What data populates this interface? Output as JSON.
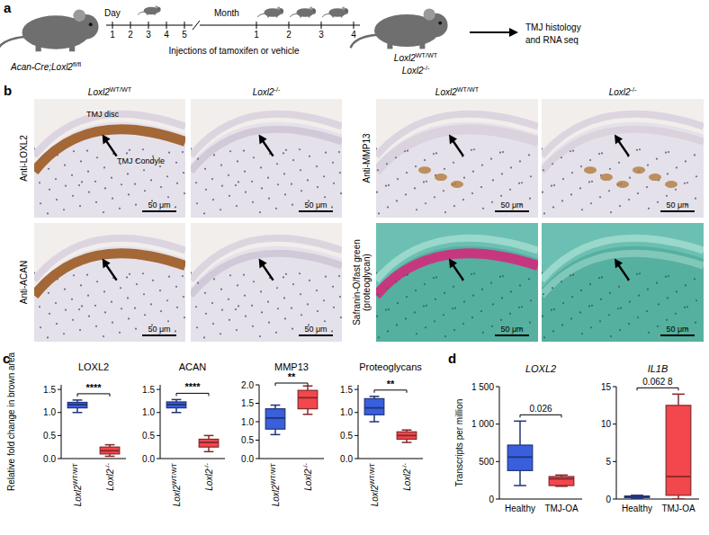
{
  "panel_letters": [
    "a",
    "b",
    "c",
    "d"
  ],
  "panel_a": {
    "start_mouse": "Acan-Cre;Loxl2fl/fl",
    "day_label": "Day",
    "days": [
      "1",
      "2",
      "3",
      "4",
      "5"
    ],
    "month_label": "Month",
    "months": [
      "1",
      "2",
      "3",
      "4"
    ],
    "injection_label": "Injections of tamoxifen or vehicle",
    "end_genotypes": [
      "Loxl2WT/WT",
      "Loxl2-/-"
    ],
    "outcome": [
      "TMJ histology",
      "and RNA seq"
    ]
  },
  "panel_b": {
    "columns": [
      "Loxl2WT/WT",
      "Loxl2-/-"
    ],
    "left_rows": [
      "Anti-LOXL2",
      "Anti-ACAN"
    ],
    "right_rows": [
      [
        "Anti-MMP13"
      ],
      [
        "Safranin-O/fast green",
        "(proteoglycan)"
      ]
    ],
    "annotations": [
      "TMJ disc",
      "TMJ Condyle"
    ],
    "scale_bar": "50 μm"
  },
  "chart_data": [
    {
      "type": "box",
      "title": "LOXL2",
      "ylabel": "Relative fold change in brown area",
      "categories": [
        "Loxl2WT/WT",
        "Loxl2-/-"
      ],
      "values": [
        [
          1.0,
          1.1,
          1.17,
          1.22,
          1.27
        ],
        [
          0.05,
          0.1,
          0.17,
          0.25,
          0.3
        ]
      ],
      "colors": [
        "#3a5fdc",
        "#f2474d"
      ],
      "ylim": [
        0,
        1.6
      ],
      "yticks": [
        {
          "value": 0,
          "label": "0.0"
        },
        {
          "value": 0.5,
          "label": "0.5"
        },
        {
          "value": 1,
          "label": "1.0"
        },
        {
          "value": 1.5,
          "label": "1.5"
        }
      ],
      "annotation": "****"
    },
    {
      "type": "box",
      "title": "ACAN",
      "categories": [
        "Loxl2WT/WT",
        "Loxl2-/-"
      ],
      "values": [
        [
          1.0,
          1.1,
          1.17,
          1.23,
          1.28
        ],
        [
          0.15,
          0.25,
          0.35,
          0.42,
          0.5
        ]
      ],
      "colors": [
        "#3a5fdc",
        "#f2474d"
      ],
      "ylim": [
        0,
        1.6
      ],
      "yticks": [
        {
          "value": 0,
          "label": "0.0"
        },
        {
          "value": 0.5,
          "label": "0.5"
        },
        {
          "value": 1,
          "label": "1.0"
        },
        {
          "value": 1.5,
          "label": "1.5"
        }
      ],
      "annotation": "****"
    },
    {
      "type": "box",
      "title": "MMP13",
      "categories": [
        "Loxl2WT/WT",
        "Loxl2-/-"
      ],
      "values": [
        [
          0.65,
          0.8,
          1.1,
          1.35,
          1.45
        ],
        [
          1.2,
          1.35,
          1.65,
          1.85,
          1.97
        ]
      ],
      "colors": [
        "#3a5fdc",
        "#f2474d"
      ],
      "ylim": [
        0,
        2
      ],
      "yticks": [
        {
          "value": 0,
          "label": "0.0"
        },
        {
          "value": 0.5,
          "label": "0.5"
        },
        {
          "value": 1,
          "label": "1.0"
        },
        {
          "value": 1.5,
          "label": "1.5"
        },
        {
          "value": 2,
          "label": "2.0"
        }
      ],
      "annotation": "**"
    },
    {
      "type": "box",
      "title": "Proteoglycans",
      "categories": [
        "Loxl2WT/WT",
        "Loxl2-/-"
      ],
      "values": [
        [
          0.8,
          0.95,
          1.1,
          1.3,
          1.35
        ],
        [
          0.35,
          0.42,
          0.5,
          0.58,
          0.62
        ]
      ],
      "colors": [
        "#3a5fdc",
        "#f2474d"
      ],
      "ylim": [
        0,
        1.6
      ],
      "yticks": [
        {
          "value": 0,
          "label": "0.0"
        },
        {
          "value": 0.5,
          "label": "0.5"
        },
        {
          "value": 1,
          "label": "1.0"
        },
        {
          "value": 1.5,
          "label": "1.5"
        }
      ],
      "annotation": "**"
    },
    {
      "type": "box",
      "title": "LOXL2",
      "ylabel": "Transcripts per million",
      "categories": [
        "Healthy",
        "TMJ-OA"
      ],
      "values": [
        [
          180,
          380,
          560,
          720,
          1040
        ],
        [
          170,
          180,
          270,
          300,
          320
        ]
      ],
      "colors": [
        "#3a5fdc",
        "#f2474d"
      ],
      "ylim": [
        0,
        1500
      ],
      "yticks": [
        0,
        500,
        {
          "value": 1000,
          "label": "1 000"
        },
        {
          "value": 1500,
          "label": "1 500"
        }
      ],
      "annotation": "0.026"
    },
    {
      "type": "box",
      "title": "IL1B",
      "categories": [
        "Healthy",
        "TMJ-OA"
      ],
      "values": [
        [
          0.1,
          0.2,
          0.3,
          0.4,
          0.5
        ],
        [
          0,
          0.5,
          3,
          12.5,
          14
        ]
      ],
      "colors": [
        "#3a5fdc",
        "#f2474d"
      ],
      "ylim": [
        0,
        15
      ],
      "yticks": [
        0,
        5,
        10,
        15
      ],
      "annotation": "0.062 8"
    }
  ]
}
